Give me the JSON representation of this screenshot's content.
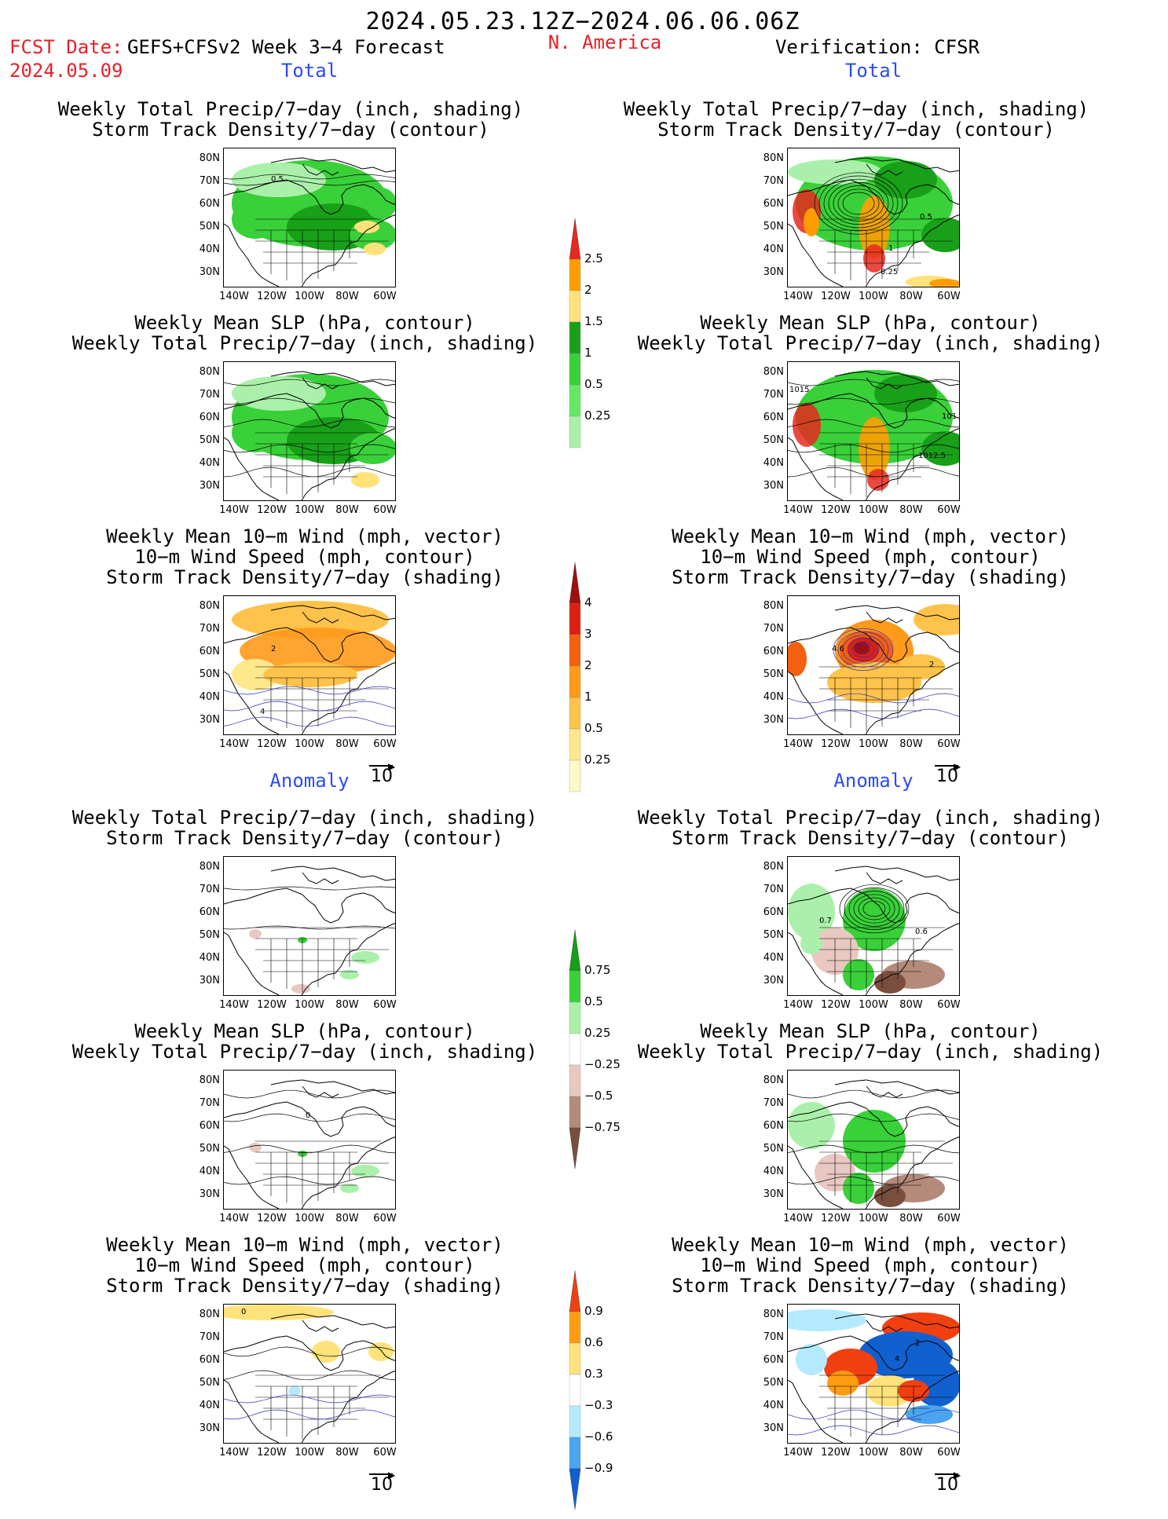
{
  "header": {
    "date_range": "2024.05.23.12Z−2024.06.06.06Z",
    "fcst_date_label": "FCST Date:",
    "model_label": "GEFS+CFSv2 Week 3−4 Forecast",
    "fcst_date": "2024.05.09",
    "region": "N. America",
    "verification": "Verification: CFSR"
  },
  "sections": {
    "total_left": "Total",
    "total_right": "Total",
    "anomaly_left": "Anomaly",
    "anomaly_right": "Anomaly"
  },
  "titles": {
    "precip_track": "Weekly Total Precip/7−day (inch, shading)\nStorm Track Density/7−day (contour)",
    "slp_precip": "Weekly Mean SLP (hPa, contour)\nWeekly Total Precip/7−day (inch, shading)",
    "wind_track": "Weekly Mean 10−m Wind (mph, vector)\n10−m Wind Speed (mph, contour)\nStorm Track Density/7−day (shading)"
  },
  "axes": {
    "lat_ticks": [
      "80N",
      "70N",
      "60N",
      "50N",
      "40N",
      "30N"
    ],
    "lon_ticks": [
      "140W",
      "120W",
      "100W",
      "80W",
      "60W"
    ]
  },
  "vector_ref": "10",
  "colorbars": {
    "precip_total": {
      "labels": [
        "2.5",
        "2",
        "1.5",
        "1",
        "0.5",
        "0.25"
      ],
      "colors": [
        "#e8281e",
        "#ff9d00",
        "#ffe27a",
        "#19a019",
        "#39d039",
        "#66e866",
        "#aaf0aa"
      ]
    },
    "track_total": {
      "labels": [
        "4",
        "3",
        "2",
        "1",
        "0.5",
        "0.25"
      ],
      "colors": [
        "#a00e0e",
        "#dd2010",
        "#f26010",
        "#ff9a1a",
        "#ffc24a",
        "#ffe88c",
        "#fff8c8"
      ]
    },
    "precip_anom": {
      "labels": [
        "0.75",
        "0.5",
        "0.25",
        "−0.25",
        "−0.5",
        "−0.75"
      ],
      "colors": [
        "#13a013",
        "#39d039",
        "#aaf0aa",
        "#ffffff",
        "#e8c8c0",
        "#b48a7a",
        "#7a4e3e"
      ]
    },
    "track_anom": {
      "labels": [
        "0.9",
        "0.6",
        "0.3",
        "−0.3",
        "−0.6",
        "−0.9"
      ],
      "colors": [
        "#f04010",
        "#ff9d10",
        "#ffe27a",
        "#ffffff",
        "#b4eaff",
        "#4aa4f0",
        "#1060d0"
      ]
    }
  },
  "contour_labels": {
    "p1": "0.5",
    "p2_a": "0.5",
    "p2_b": "1",
    "p2_c": "0.25",
    "p4_a": "1015",
    "p4_b": "101",
    "p4_c": "1012.5",
    "p5": "2",
    "p5_b": "4",
    "p6": "4.6",
    "p6_b": "2",
    "p8_a": "0.7",
    "p8_b": "0.6",
    "p11": "0",
    "p12_a": "2",
    "p12_b": "4"
  },
  "panel_names": [
    "p1",
    "p2",
    "p3",
    "p4",
    "p5",
    "p6",
    "p7",
    "p8",
    "p9",
    "p10",
    "p11",
    "p12"
  ]
}
